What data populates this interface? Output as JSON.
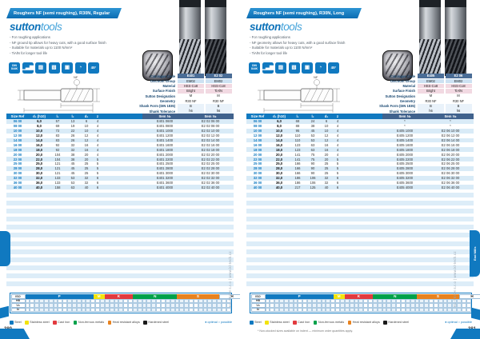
{
  "brand": {
    "logo_bold": "sutton",
    "logo_light": "tools"
  },
  "watermark": "KL-TECH s.r.o | www.kl-tech.cz",
  "drawing_label": "NF",
  "filler_stripes": 12,
  "edge": {
    "section_tab": "End Mills"
  },
  "badges": [
    {
      "name": "din-844k-badge",
      "text": "DIN 844K",
      "style": "tiny"
    },
    {
      "name": "ramp-steps-icon",
      "text": "▁▃▆",
      "style": ""
    },
    {
      "name": "slot-milling-icon",
      "text": "▨",
      "style": ""
    },
    {
      "name": "side-milling-icon",
      "text": "▧",
      "style": ""
    },
    {
      "name": "plunge-cut-icon",
      "text": "▣",
      "style": ""
    },
    {
      "name": "pie-segment-icon",
      "text": "◔",
      "style": ""
    },
    {
      "name": "corner-angle-badge",
      "text": "45°",
      "style": "deg"
    }
  ],
  "cutting": {
    "iso_label": "ISO",
    "groups": [
      {
        "letter": "P",
        "color": "#1079c0",
        "width": 31
      },
      {
        "letter": "M",
        "color": "#f2e30e",
        "width": 5
      },
      {
        "letter": "K",
        "color": "#e23a3f",
        "width": 13
      },
      {
        "letter": "N",
        "color": "#00a14b",
        "width": 20
      },
      {
        "letter": "S",
        "color": "#e8821e",
        "width": 19
      },
      {
        "letter": "H",
        "color": "#ffffff",
        "width": 12
      }
    ],
    "row_labels": [
      "HB",
      "Vc",
      "fz"
    ],
    "cells_per_row": 44,
    "legend": [
      {
        "color": "#1079c0",
        "label": "Steel"
      },
      {
        "color": "#f2e30e",
        "label": "Stainless steel"
      },
      {
        "color": "#e23a3f",
        "label": "Cast iron"
      },
      {
        "color": "#00a14b",
        "label": "Non-ferrous metals"
      },
      {
        "color": "#e8821e",
        "label": "Heat resistant alloys"
      },
      {
        "color": "#1a1a1a",
        "label": "Hardened steel"
      }
    ],
    "legend_note": "● optimal   ○ possible"
  },
  "pages": [
    {
      "title": "Roughers NF (semi roughing), R30N, Regular",
      "bullets": [
        "For roughing applications",
        "NF ground tip allows for heavy cuts, with a good surface finish",
        "Suitable for materials up to 1100 N/mm²",
        "TiAlN for longer tool life"
      ],
      "spec": {
        "labels": [
          "Catalogue Code",
          "Discount Group",
          "Material",
          "Surface Finish",
          "Sutton Designation",
          "Geometry",
          "Shank Form (DIN 1835)",
          "Shank Tolerance"
        ],
        "col1": [
          "E401",
          "EM02",
          "HSS-Co8",
          "Bright",
          "M",
          "R30 NF",
          "B",
          "h6"
        ],
        "col2": [
          "E2 02",
          "EM02",
          "HSS-Co8",
          "TiAlN",
          "M",
          "R30 NF",
          "B",
          "h6"
        ]
      },
      "table": {
        "headers": [
          "Size Ref",
          "d₁ (h10)",
          "l₁",
          "l₂",
          "d₂",
          "z",
          "Item №",
          "Item №"
        ],
        "rows": [
          [
            "06 00",
            "6,0",
            "57",
            "13",
            "6",
            "4",
            "E401 0600",
            "E2 02 06 00"
          ],
          [
            "08 00",
            "8,0",
            "69",
            "19",
            "10",
            "4",
            "E401 0800",
            "E2 02 08 00"
          ],
          [
            "10 00",
            "10,0",
            "72",
            "22",
            "10",
            "4",
            "E401 1000",
            "E2 02 10 00"
          ],
          [
            "12 00",
            "12,0",
            "83",
            "26",
            "12",
            "4",
            "E401 1200",
            "E2 02 12 00"
          ],
          [
            "14 00",
            "14,0",
            "83",
            "26",
            "12",
            "4",
            "E401 1400",
            "E2 02 14 00"
          ],
          [
            "16 00",
            "16,0",
            "92",
            "32",
            "16",
            "4",
            "E401 1600",
            "E2 02 16 00"
          ],
          [
            "18 00",
            "18,0",
            "92",
            "32",
            "16",
            "4",
            "E401 1800",
            "E2 02 18 00"
          ],
          [
            "20 00",
            "20,0",
            "104",
            "38",
            "20",
            "4",
            "E401 2000",
            "E2 02 20 00"
          ],
          [
            "22 00",
            "22,0",
            "104",
            "38",
            "20",
            "5",
            "E401 2200",
            "E2 02 22 00"
          ],
          [
            "25 00",
            "25,0",
            "121",
            "45",
            "25",
            "5",
            "E401 2500",
            "E2 02 25 00"
          ],
          [
            "28 00",
            "28,0",
            "121",
            "45",
            "25",
            "5",
            "E401 2800",
            "E2 02 28 00"
          ],
          [
            "30 00",
            "30,0",
            "121",
            "45",
            "25",
            "5",
            "E401 3000",
            "E2 02 30 00"
          ],
          [
            "32 00",
            "32,0",
            "133",
            "53",
            "32",
            "6",
            "E401 3200",
            "E2 02 32 00"
          ],
          [
            "36 00",
            "36,0",
            "133",
            "53",
            "32",
            "6",
            "E401 3600",
            "E2 02 36 00"
          ],
          [
            "40 00",
            "40,0",
            "158",
            "63",
            "40",
            "6",
            "E401 4000",
            "E2 02 40 00"
          ]
        ]
      },
      "page_number": "380",
      "footnote": ""
    },
    {
      "title": "Roughers NF (semi roughing), R30N, Long",
      "bullets": [
        "For roughing applications",
        "NF geometry allows for heavy cuts, with a good surface finish",
        "Suitable for materials up to 1100 N/mm²",
        "TiAlN for longer tool life"
      ],
      "spec": {
        "labels": [
          "Catalogue Code",
          "Discount Group",
          "Material",
          "Surface Finish",
          "Sutton Designation",
          "Geometry",
          "Shank Form (DIN 1835)",
          "Shank Tolerance"
        ],
        "col1": [
          "E405",
          "EM02",
          "HSS-Co8",
          "Bright",
          "M",
          "R30 NF",
          "B",
          "h6"
        ],
        "col2": [
          "E2 06",
          "EM02",
          "HSS-Co8",
          "TiAlN",
          "M",
          "R30 NF",
          "B",
          "h6"
        ]
      },
      "table": {
        "headers": [
          "Size Ref",
          "d₁ (h10)",
          "l₁",
          "l₂",
          "d₂",
          "z",
          "Item №",
          "Item №"
        ],
        "rows": [
          [
            "06 00",
            "6,0",
            "68",
            "24",
            "6",
            "4",
            "*",
            "*"
          ],
          [
            "08 00",
            "8,0",
            "88",
            "38",
            "10",
            "4",
            "*",
            "*"
          ],
          [
            "10 00",
            "10,0",
            "95",
            "45",
            "10",
            "4",
            "E405 1000",
            "E2 06 10 00"
          ],
          [
            "12 00",
            "12,0",
            "110",
            "53",
            "12",
            "4",
            "E405 1200",
            "E2 06 12 00"
          ],
          [
            "14 00",
            "14,0",
            "110",
            "53",
            "12",
            "4",
            "E405 1400",
            "E2 06 14 00"
          ],
          [
            "16 00",
            "16,0",
            "123",
            "63",
            "16",
            "4",
            "E405 1600",
            "E2 06 16 00"
          ],
          [
            "18 00",
            "18,0",
            "123",
            "63",
            "16",
            "4",
            "E405 1800",
            "E2 06 18 00"
          ],
          [
            "20 00",
            "20,0",
            "141",
            "75",
            "20",
            "4",
            "E405 2000",
            "E2 06 20 00"
          ],
          [
            "22 00",
            "22,0",
            "141",
            "75",
            "20",
            "5",
            "E405 2200",
            "E2 06 22 00"
          ],
          [
            "25 00",
            "25,0",
            "166",
            "90",
            "25",
            "5",
            "E405 2500",
            "E2 06 25 00"
          ],
          [
            "28 00",
            "28,0",
            "166",
            "90",
            "25",
            "5",
            "E405 2800",
            "E2 06 28 00"
          ],
          [
            "30 00",
            "30,0",
            "166",
            "90",
            "25",
            "5",
            "E405 3000",
            "E2 06 30 00"
          ],
          [
            "32 00",
            "32,0",
            "186",
            "106",
            "32",
            "6",
            "E405 3200",
            "E2 06 32 00"
          ],
          [
            "36 00",
            "36,0",
            "186",
            "106",
            "32",
            "6",
            "E405 3600",
            "E2 06 36 00"
          ],
          [
            "40 00",
            "40,0",
            "217",
            "125",
            "40",
            "6",
            "E405 4000",
            "E2 06 40 00"
          ]
        ]
      },
      "page_number": "381",
      "footnote": "* Non-stocked sizes available on indent — minimum order quantities apply."
    }
  ]
}
